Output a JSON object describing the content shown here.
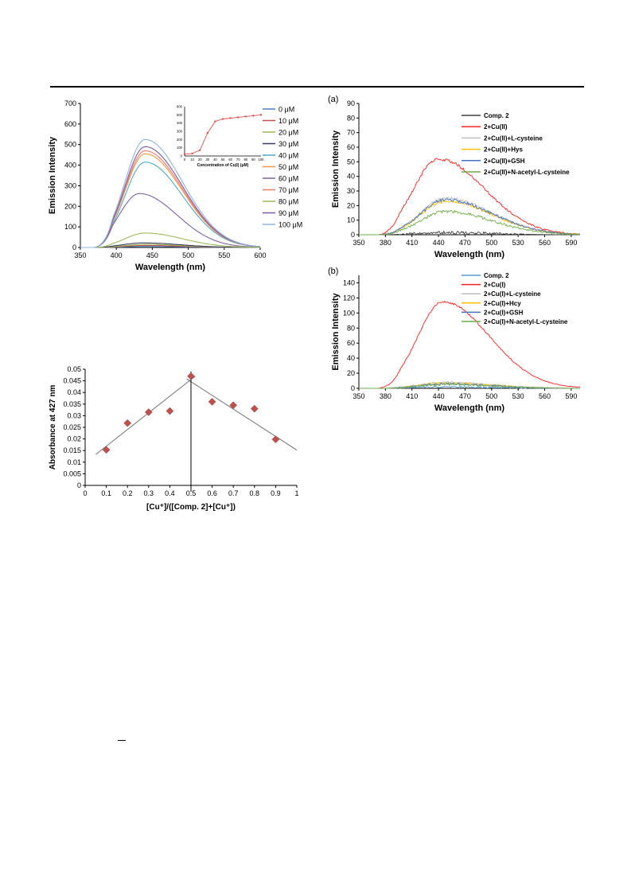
{
  "chart_data": [
    {
      "id": "emission_titration",
      "type": "line",
      "xlabel": "Wavelength (nm)",
      "ylabel": "Emission Intensity",
      "xlim": [
        350,
        600
      ],
      "ylim": [
        0,
        700
      ],
      "x_ticks": [
        "350",
        "400",
        "450",
        "500",
        "550",
        "600"
      ],
      "y_ticks": [
        "0",
        "100",
        "200",
        "300",
        "400",
        "500",
        "600",
        "700"
      ],
      "legend_position": "right",
      "series": [
        {
          "name": "0 μM",
          "color": "#4f81bd",
          "peak_x": 440,
          "peak": 5
        },
        {
          "name": "10 μM",
          "color": "#c0504d",
          "peak_x": 440,
          "peak": 10
        },
        {
          "name": "20 μM",
          "color": "#9bbb59",
          "peak_x": 440,
          "peak": 15
        },
        {
          "name": "30 μM",
          "color": "#3b3b5c",
          "peak_x": 437,
          "peak": 22
        },
        {
          "name": "40 μM",
          "color": "#4bacc6",
          "peak_x": 440,
          "peak": 415
        },
        {
          "name": "50 μM",
          "color": "#f79646",
          "peak_x": 440,
          "peak": 455
        },
        {
          "name": "60 μM",
          "color": "#8064a2",
          "peak_x": 432,
          "peak": 262
        },
        {
          "name": "70 μM",
          "color": "#f2796a",
          "peak_x": 440,
          "peak": 470
        },
        {
          "name": "80 μM",
          "color": "#9bbb59",
          "peak_x": 440,
          "peak": 70
        },
        {
          "name": "90 μM",
          "color": "#7b5a9e",
          "peak_x": 440,
          "peak": 490
        },
        {
          "name": "100 μM",
          "color": "#8db4e2",
          "peak_x": 440,
          "peak": 525
        }
      ],
      "inset": {
        "type": "line",
        "xlabel": "Concentration of Cu(I) (μM)",
        "xlim": [
          0,
          100
        ],
        "ylim": [
          0,
          600
        ],
        "x_ticks": [
          "0",
          "10",
          "20",
          "30",
          "40",
          "50",
          "60",
          "70",
          "80",
          "90",
          "100"
        ],
        "y_ticks": [
          "0",
          "100",
          "200",
          "300",
          "400",
          "500",
          "600"
        ],
        "color": "#d9534f",
        "x": [
          0,
          10,
          20,
          30,
          40,
          50,
          60,
          70,
          80,
          90,
          100
        ],
        "y": [
          20,
          30,
          70,
          280,
          420,
          450,
          460,
          470,
          480,
          490,
          500
        ]
      }
    },
    {
      "id": "selectivity_a",
      "panel_label": "(a)",
      "type": "line",
      "xlabel": "Wavelength (nm)",
      "ylabel": "Emission Intensity",
      "xlim": [
        350,
        600
      ],
      "ylim": [
        0,
        90
      ],
      "x_ticks": [
        "350",
        "380",
        "410",
        "440",
        "470",
        "500",
        "530",
        "560",
        "590"
      ],
      "y_ticks": [
        "0",
        "10",
        "20",
        "30",
        "40",
        "50",
        "60",
        "70",
        "80",
        "90"
      ],
      "legend_position": "top-right",
      "series": [
        {
          "name": "Comp. 2",
          "color": "#404040",
          "peak_x": 445,
          "peak": 1.5
        },
        {
          "name": "2+Cu(II)",
          "color": "#ff2020",
          "peak_x": 440,
          "peak": 52
        },
        {
          "name": "2+Cu(II)+L-cysteine",
          "color": "#bfbfbf",
          "peak_x": 448,
          "peak": 25
        },
        {
          "name": "2+Cu(II)+Hys",
          "color": "#ffc000",
          "peak_x": 448,
          "peak": 23
        },
        {
          "name": "2+Cu(II)+GSH",
          "color": "#4472c4",
          "peak_x": 448,
          "peak": 24
        },
        {
          "name": "2+Cu(II)+N-acetyl-L-cysteine",
          "color": "#70ad47",
          "peak_x": 448,
          "peak": 16
        }
      ]
    },
    {
      "id": "selectivity_b",
      "panel_label": "(b)",
      "type": "line",
      "xlabel": "Wavelength (nm)",
      "ylabel": "Emission Intensity",
      "xlim": [
        350,
        600
      ],
      "ylim": [
        0,
        150
      ],
      "x_ticks": [
        "350",
        "380",
        "410",
        "440",
        "470",
        "500",
        "530",
        "560",
        "590"
      ],
      "y_ticks": [
        "0",
        "20",
        "40",
        "60",
        "80",
        "100",
        "120",
        "140"
      ],
      "legend_position": "top-right",
      "series": [
        {
          "name": "Comp. 2",
          "color": "#5b9bd5",
          "peak_x": 445,
          "peak": 2
        },
        {
          "name": "2+Cu(I)",
          "color": "#ff2020",
          "peak_x": 445,
          "peak": 115
        },
        {
          "name": "2+Cu(I)+L-cysteine",
          "color": "#bfbfbf",
          "peak_x": 448,
          "peak": 8
        },
        {
          "name": "2+Cu(I)+Hcy",
          "color": "#ffc000",
          "peak_x": 448,
          "peak": 7
        },
        {
          "name": "2+Cu(I)+GSH",
          "color": "#4472c4",
          "peak_x": 448,
          "peak": 6
        },
        {
          "name": "2+Cu(I)+N-acetyl-L-cysteine",
          "color": "#70ad47",
          "peak_x": 448,
          "peak": 5
        }
      ]
    },
    {
      "id": "job_plot",
      "type": "scatter",
      "xlabel": "[Cu⁺]/([Comp. 2]+[Cu⁺])",
      "ylabel": "Absorbance at 427 nm",
      "xlim": [
        0,
        1
      ],
      "ylim": [
        0,
        0.05
      ],
      "x_ticks": [
        "0",
        "0.1",
        "0.2",
        "0.3",
        "0.4",
        "0.5",
        "0.6",
        "0.7",
        "0.8",
        "0.9",
        "1"
      ],
      "y_ticks": [
        "0",
        "0.005",
        "0.01",
        "0.015",
        "0.02",
        "0.025",
        "0.03",
        "0.035",
        "0.04",
        "0.045",
        "0.05"
      ],
      "marker_color": "#c0504d",
      "x": [
        0.1,
        0.2,
        0.3,
        0.4,
        0.5,
        0.6,
        0.7,
        0.8,
        0.9
      ],
      "y": [
        0.0153,
        0.0268,
        0.0315,
        0.032,
        0.047,
        0.036,
        0.0345,
        0.033,
        0.0198
      ],
      "fit_left": {
        "x": [
          0.05,
          0.52
        ],
        "y": [
          0.0133,
          0.047
        ]
      },
      "fit_right": {
        "x": [
          0.48,
          1.0
        ],
        "y": [
          0.0458,
          0.0152
        ]
      },
      "vline_x": 0.5
    }
  ]
}
